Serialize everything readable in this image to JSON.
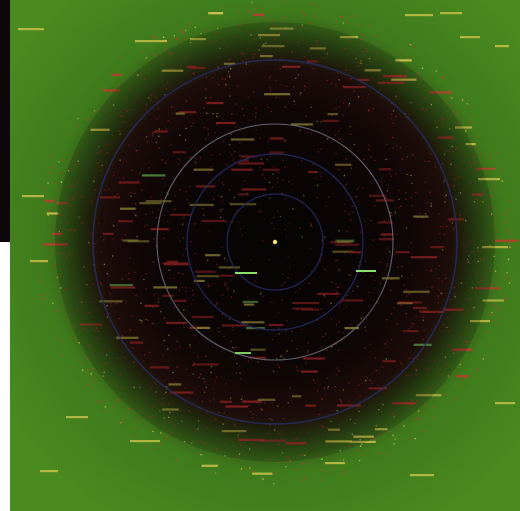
{
  "image": {
    "caption": "",
    "colors": {
      "field_green": "#3f7b1c",
      "inner_dark": "#0a0606",
      "object_red": "#d23232",
      "object_yellow": "#d7c84f",
      "object_green": "#8ae26a",
      "orbit_blue": "#3e46a3",
      "orbit_grey": "#b7b7c8",
      "sun_yellow": "#f2e37a"
    },
    "icons": {
      "center": "sun-dot-icon",
      "labels": "object-label-icon",
      "orbits": "orbit-ring-icon"
    }
  }
}
